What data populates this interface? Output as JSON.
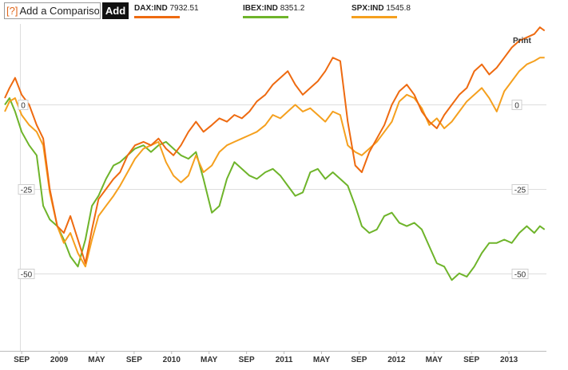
{
  "toolbar": {
    "help_label": "[?]",
    "compare_placeholder": "Add a Comparison",
    "add_label": "Add"
  },
  "legend": [
    {
      "symbol": "DAX:IND",
      "value": "7932.51",
      "color": "#ee6a10"
    },
    {
      "symbol": "IBEX:IND",
      "value": "8351.2",
      "color": "#6eb42a"
    },
    {
      "symbol": "SPX:IND",
      "value": "1545.8",
      "color": "#f5a01e"
    }
  ],
  "print_label": "Print",
  "chart_data": {
    "type": "line",
    "x_labels": [
      "SEP",
      "2009",
      "MAY",
      "SEP",
      "2010",
      "MAY",
      "SEP",
      "2011",
      "MAY",
      "SEP",
      "2012",
      "MAY",
      "SEP",
      "2013"
    ],
    "x_label_months": [
      8,
      12,
      16,
      20,
      24,
      28,
      32,
      36,
      40,
      44,
      48,
      52,
      56,
      60
    ],
    "x_domain": [
      6.2,
      64.0
    ],
    "ylim": [
      -73,
      24
    ],
    "yticks": [
      {
        "value": 0,
        "label": "0"
      },
      {
        "value": -25,
        "label": "-25"
      },
      {
        "value": -50,
        "label": "-50"
      }
    ],
    "grid": true,
    "series": [
      {
        "name": "IBEX:IND",
        "color": "#6eb42a",
        "x": [
          6.2,
          6.7,
          7.3,
          8.0,
          8.8,
          9.6,
          10.3,
          11.0,
          11.8,
          12.5,
          13.2,
          14.0,
          14.8,
          15.5,
          16.2,
          17.0,
          17.8,
          18.5,
          19.3,
          20.1,
          21.0,
          21.8,
          22.6,
          23.4,
          24.2,
          25.0,
          25.8,
          26.6,
          27.4,
          28.3,
          29.1,
          29.9,
          30.7,
          31.5,
          32.3,
          33.1,
          34.0,
          34.8,
          35.6,
          36.4,
          37.2,
          38.0,
          38.8,
          39.6,
          40.4,
          41.2,
          42.0,
          42.8,
          43.6,
          44.3,
          45.1,
          45.9,
          46.7,
          47.5,
          48.3,
          49.1,
          49.9,
          50.7,
          51.5,
          52.3,
          53.1,
          53.9,
          54.7,
          55.5,
          56.3,
          57.1,
          57.9,
          58.7,
          59.5,
          60.3,
          61.1,
          61.9,
          62.7,
          63.3,
          63.8
        ],
        "y": [
          0,
          2,
          -2,
          -8,
          -12,
          -15,
          -30,
          -34,
          -36,
          -40,
          -45,
          -48,
          -40,
          -30,
          -27,
          -22,
          -18,
          -17,
          -15,
          -13,
          -12,
          -14,
          -12,
          -11,
          -13,
          -15,
          -16,
          -14,
          -22,
          -32,
          -30,
          -22,
          -17,
          -19,
          -21,
          -22,
          -20,
          -19,
          -21,
          -24,
          -27,
          -26,
          -20,
          -19,
          -22,
          -20,
          -22,
          -24,
          -30,
          -36,
          -38,
          -37,
          -33,
          -32,
          -35,
          -36,
          -35,
          -37,
          -42,
          -47,
          -48,
          -52,
          -50,
          -51,
          -48,
          -44,
          -41,
          -41,
          -40,
          -41,
          -38,
          -36,
          -38,
          -36,
          -37
        ]
      },
      {
        "name": "SPX:IND",
        "color": "#f5a01e",
        "x": [
          6.2,
          6.7,
          7.3,
          8.0,
          8.8,
          9.6,
          10.3,
          11.0,
          11.8,
          12.5,
          13.2,
          14.0,
          14.8,
          15.5,
          16.2,
          17.0,
          17.8,
          18.5,
          19.3,
          20.1,
          21.0,
          21.8,
          22.6,
          23.4,
          24.2,
          25.0,
          25.8,
          26.6,
          27.4,
          28.3,
          29.1,
          29.9,
          30.7,
          31.5,
          32.3,
          33.1,
          34.0,
          34.8,
          35.6,
          36.4,
          37.2,
          38.0,
          38.8,
          39.6,
          40.4,
          41.2,
          42.0,
          42.8,
          43.6,
          44.3,
          45.1,
          45.9,
          46.7,
          47.5,
          48.3,
          49.1,
          49.9,
          50.7,
          51.5,
          52.3,
          53.1,
          53.9,
          54.7,
          55.5,
          56.3,
          57.1,
          57.9,
          58.7,
          59.5,
          60.3,
          61.1,
          61.9,
          62.7,
          63.3,
          63.8
        ],
        "y": [
          -2,
          1,
          2,
          -3,
          -6,
          -8,
          -12,
          -26,
          -36,
          -41,
          -38,
          -44,
          -48,
          -40,
          -33,
          -30,
          -27,
          -24,
          -20,
          -16,
          -13,
          -12,
          -11,
          -17,
          -21,
          -23,
          -21,
          -15,
          -20,
          -18,
          -14,
          -12,
          -11,
          -10,
          -9,
          -8,
          -6,
          -3,
          -4,
          -2,
          0,
          -2,
          -1,
          -3,
          -5,
          -2,
          -3,
          -12,
          -14,
          -15,
          -13,
          -11,
          -8,
          -5,
          1,
          3,
          2,
          -1,
          -6,
          -4,
          -7,
          -5,
          -2,
          1,
          3,
          5,
          2,
          -2,
          4,
          7,
          10,
          12,
          13,
          14,
          14
        ]
      },
      {
        "name": "DAX:IND",
        "color": "#ee6a10",
        "x": [
          6.2,
          6.7,
          7.3,
          8.0,
          8.8,
          9.6,
          10.3,
          11.0,
          11.8,
          12.5,
          13.2,
          14.0,
          14.8,
          15.5,
          16.2,
          17.0,
          17.8,
          18.5,
          19.3,
          20.1,
          21.0,
          21.8,
          22.6,
          23.4,
          24.2,
          25.0,
          25.8,
          26.6,
          27.4,
          28.3,
          29.1,
          29.9,
          30.7,
          31.5,
          32.3,
          33.1,
          34.0,
          34.8,
          35.6,
          36.4,
          37.2,
          38.0,
          38.8,
          39.6,
          40.4,
          41.2,
          42.0,
          42.8,
          43.6,
          44.3,
          45.1,
          45.9,
          46.7,
          47.5,
          48.3,
          49.1,
          49.9,
          50.7,
          51.5,
          52.3,
          53.1,
          53.9,
          54.7,
          55.5,
          56.3,
          57.1,
          57.9,
          58.7,
          59.5,
          60.3,
          61.1,
          61.9,
          62.7,
          63.3,
          63.8
        ],
        "y": [
          2,
          5,
          8,
          3,
          0,
          -6,
          -10,
          -25,
          -36,
          -38,
          -33,
          -40,
          -47,
          -37,
          -28,
          -25,
          -22,
          -20,
          -15,
          -12,
          -11,
          -12,
          -10,
          -13,
          -15,
          -12,
          -8,
          -5,
          -8,
          -6,
          -4,
          -5,
          -3,
          -4,
          -2,
          1,
          3,
          6,
          8,
          10,
          6,
          3,
          5,
          7,
          10,
          14,
          13,
          -5,
          -18,
          -20,
          -14,
          -10,
          -6,
          0,
          4,
          6,
          3,
          -2,
          -5,
          -7,
          -3,
          0,
          3,
          5,
          10,
          12,
          9,
          11,
          14,
          17,
          19,
          20,
          21,
          23,
          22
        ]
      }
    ]
  }
}
